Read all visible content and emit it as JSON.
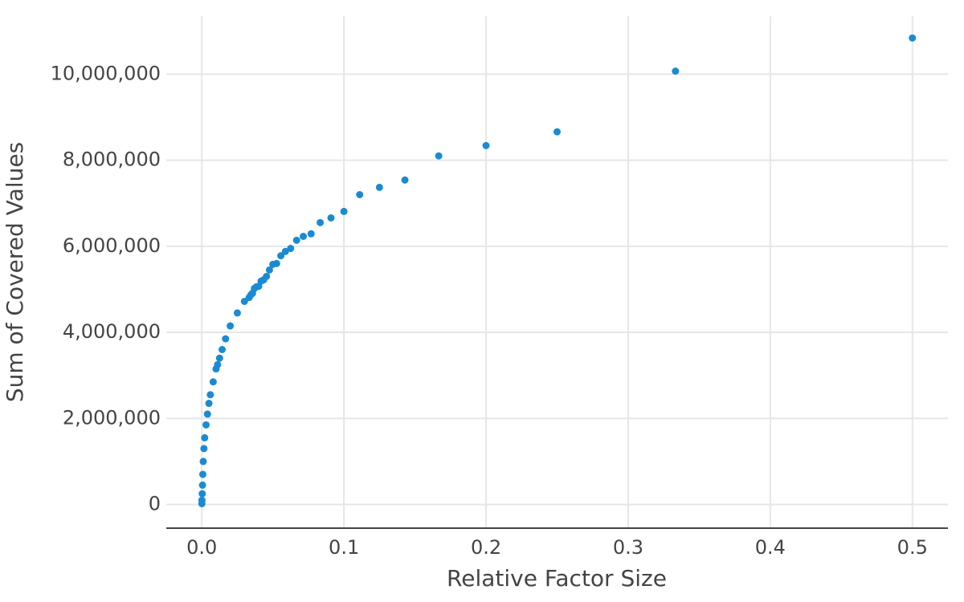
{
  "chart_data": {
    "type": "scatter",
    "x_label": "Relative Factor Size",
    "y_label": "Sum of Covered Values",
    "xlim": [
      -0.025,
      0.525
    ],
    "ylim": [
      -550000,
      11350000
    ],
    "xticks": [
      {
        "value": 0,
        "label": "0.0"
      },
      0.1,
      0.2,
      0.3,
      0.4,
      0.5
    ],
    "yticks": [
      0,
      {
        "value": 2000000,
        "label": "2,000,000"
      },
      {
        "value": 4000000,
        "label": "4,000,000"
      },
      {
        "value": 6000000,
        "label": "6,000,000"
      },
      {
        "value": 8000000,
        "label": "8,000,000"
      },
      {
        "value": 10000000,
        "label": "10,000,000"
      }
    ],
    "grid": true,
    "series": [
      {
        "color": "#1a8bd3",
        "x": [
          0.5,
          0.3333,
          0.25,
          0.2,
          0.1667,
          0.1429,
          0.125,
          0.1111,
          0.1,
          0.0909,
          0.0833,
          0.0769,
          0.0714,
          0.0667,
          0.0625,
          0.0588,
          0.0556,
          0.0526,
          0.05,
          0.0476,
          0.0455,
          0.0435,
          0.0417,
          0.04,
          0.0385,
          0.037,
          0.0357,
          0.0345,
          0.0333,
          0.03,
          0.025,
          0.02,
          0.0167,
          0.0143,
          0.0125,
          0.0111,
          0.01,
          0.008,
          0.006,
          0.005,
          0.004,
          0.003,
          0.002,
          0.0015,
          0.001,
          0.0007,
          0.0005,
          0.0003,
          0.0001,
          5e-05
        ],
        "values": [
          10840000,
          10070000,
          8660000,
          8340000,
          8100000,
          7540000,
          7370000,
          7200000,
          6810000,
          6660000,
          6550000,
          6290000,
          6230000,
          6140000,
          5950000,
          5880000,
          5780000,
          5600000,
          5580000,
          5450000,
          5300000,
          5220000,
          5190000,
          5070000,
          5060000,
          5020000,
          4910000,
          4870000,
          4810000,
          4720000,
          4450000,
          4150000,
          3850000,
          3600000,
          3400000,
          3250000,
          3150000,
          2850000,
          2550000,
          2350000,
          2100000,
          1850000,
          1550000,
          1300000,
          1000000,
          700000,
          450000,
          250000,
          100000,
          20000
        ]
      }
    ]
  }
}
